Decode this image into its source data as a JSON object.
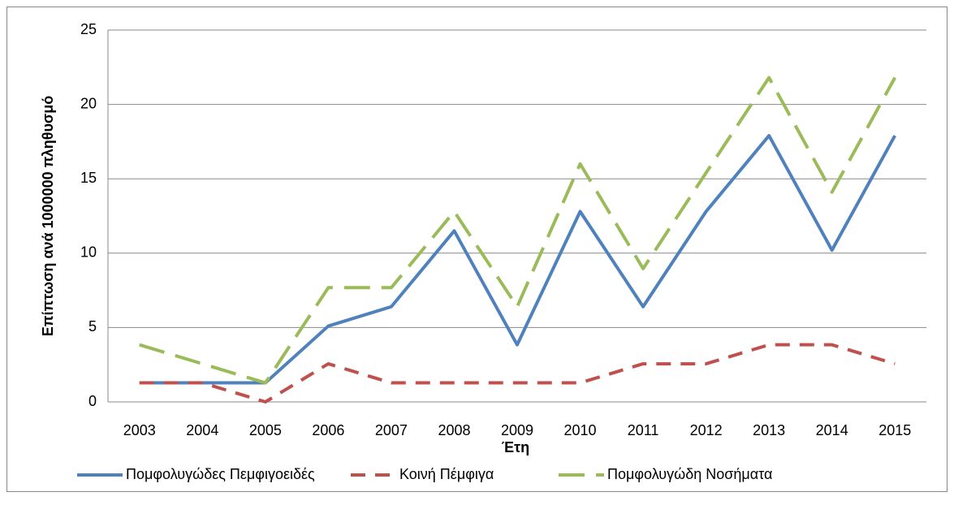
{
  "chart_data": {
    "type": "line",
    "x_label": "Έτη",
    "y_label": "Επίπτωση ανά 1000000 πληθυσμό",
    "categories": [
      "2003",
      "2004",
      "2005",
      "2006",
      "2007",
      "2008",
      "2009",
      "2010",
      "2011",
      "2012",
      "2013",
      "2014",
      "2015"
    ],
    "series": [
      {
        "name": "Πομφολυγώδες Πεμφιγοειδές",
        "color": "#4f81bd",
        "dash": "solid",
        "values": [
          1.28,
          1.28,
          1.28,
          5.1,
          6.4,
          11.5,
          3.84,
          12.8,
          6.4,
          12.8,
          17.9,
          10.2,
          17.9
        ]
      },
      {
        "name": "Κοινή Πέμφιγα",
        "color": "#c0504d",
        "dash": "dashed",
        "values": [
          1.28,
          1.28,
          0,
          2.56,
          1.28,
          1.28,
          1.28,
          1.28,
          2.56,
          2.56,
          3.84,
          3.84,
          2.56
        ]
      },
      {
        "name": "Πομφολυγώδη Νοσήματα",
        "color": "#9bbb59",
        "dash": "long-dash",
        "values": [
          3.84,
          2.56,
          1.28,
          7.68,
          7.68,
          12.8,
          6.4,
          16.0,
          8.96,
          15.4,
          21.8,
          14.1,
          21.8
        ]
      }
    ],
    "ylim": [
      0,
      25
    ],
    "yticks": [
      0,
      5,
      10,
      15,
      20,
      25
    ],
    "grid": true,
    "legend": "bottom"
  }
}
